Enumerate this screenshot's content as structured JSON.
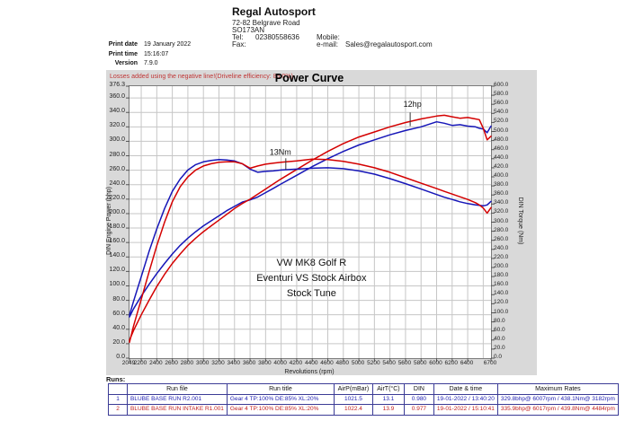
{
  "header": {
    "company": "Regal Autosport",
    "address_line1": "72-82 Belgrave Road",
    "address_line2": "SO173AN",
    "tel_label": "Tel:",
    "tel": "02380558636",
    "fax_label": "Fax:",
    "mobile_label": "Mobile:",
    "email_label": "e-mail:",
    "email": "Sales@regalautosport.com"
  },
  "print_info": {
    "print_date_label": "Print date",
    "print_date": "19 January 2022",
    "print_time_label": "Print time",
    "print_time": "15:16:07",
    "version_label": "Version",
    "version": "7.9.0"
  },
  "chart": {
    "title": "Power Curve",
    "losses_note": "Losses added using the negative line!(Driveline efficiency: 85.0%)"
  },
  "chart_data": {
    "type": "line",
    "title": "Power Curve",
    "xlabel": "Revolutions (rpm)",
    "ylabel_left": "DIN Engine Power (bhp)",
    "ylabel_right": "DIN Torque (Nm)",
    "x_range": [
      2049,
      6700
    ],
    "left_range": [
      0,
      376.3
    ],
    "right_range": [
      0,
      600
    ],
    "left_ticks": [
      376.3,
      360,
      340,
      320,
      300,
      280,
      260,
      240,
      220,
      200,
      180,
      160,
      140,
      120,
      100,
      80,
      60,
      40,
      20,
      0
    ],
    "right_tick_step": 20,
    "x_ticks": [
      2049,
      2200,
      2400,
      2600,
      2800,
      3000,
      3200,
      3400,
      3600,
      3800,
      4000,
      4200,
      4400,
      4600,
      4800,
      5000,
      5200,
      5400,
      5600,
      5800,
      6000,
      6200,
      6400,
      6700
    ],
    "grid": {
      "x_step": 200,
      "y_left_step": 20
    },
    "x": [
      2049,
      2100,
      2200,
      2300,
      2400,
      2500,
      2600,
      2700,
      2800,
      2900,
      3000,
      3100,
      3200,
      3300,
      3400,
      3500,
      3600,
      3700,
      3800,
      3900,
      4000,
      4200,
      4400,
      4600,
      4800,
      5000,
      5200,
      5400,
      5600,
      5800,
      6000,
      6100,
      6200,
      6300,
      6400,
      6500,
      6550,
      6600,
      6650,
      6700
    ],
    "series": [
      {
        "id": "power-stock",
        "name": "BLUBE BASE RUN R2.001 - Power (bhp)",
        "axis": "left",
        "color": "#1616b8",
        "values": [
          57,
          68,
          86,
          102,
          117,
          131,
          144,
          156,
          166,
          175,
          183,
          190,
          197,
          204,
          210,
          216,
          219,
          223,
          229,
          235,
          241,
          253,
          265,
          276,
          286,
          295,
          302,
          309,
          315,
          320,
          327,
          325,
          322,
          323,
          321,
          320,
          318,
          317,
          312,
          321
        ]
      },
      {
        "id": "power-intake",
        "name": "BLUBE BASE RUN INTAKE R1.001 - Power (bhp)",
        "axis": "left",
        "color": "#d40000",
        "values": [
          25,
          38,
          60,
          80,
          99,
          116,
          131,
          144,
          156,
          166,
          175,
          183,
          191,
          199,
          207,
          214,
          220,
          227,
          234,
          241,
          248,
          261,
          274,
          286,
          297,
          306,
          313,
          320,
          326,
          331,
          335,
          336,
          334,
          332,
          333,
          331,
          330,
          318,
          302,
          307
        ]
      },
      {
        "id": "torque-stock",
        "name": "BLUBE BASE RUN R2.001 - Torque (Nm)",
        "axis": "right",
        "color": "#1616b8",
        "values": [
          95,
          125,
          180,
          235,
          285,
          330,
          368,
          395,
          415,
          427,
          433,
          436,
          438,
          437,
          435,
          429,
          417,
          410,
          412,
          413,
          415,
          417,
          419,
          420,
          418,
          413,
          406,
          396,
          385,
          373,
          361,
          355,
          350,
          345,
          341,
          338,
          337,
          336,
          338,
          346
        ]
      },
      {
        "id": "torque-intake",
        "name": "BLUBE BASE RUN INTAKE R1.001 - Torque (Nm)",
        "axis": "right",
        "color": "#d40000",
        "values": [
          35,
          70,
          130,
          190,
          248,
          300,
          345,
          378,
          400,
          415,
          424,
          429,
          432,
          433,
          433,
          429,
          419,
          424,
          428,
          430,
          432,
          435,
          439,
          438,
          434,
          428,
          420,
          410,
          398,
          386,
          374,
          368,
          362,
          356,
          350,
          343,
          338,
          331,
          320,
          332
        ]
      }
    ],
    "annotations": [
      {
        "text": "12hp",
        "x": 5690,
        "y": 348,
        "axis": "left",
        "tick_x": 5660,
        "tick_y1": 340,
        "tick_y2": 321
      },
      {
        "text": "13Nm",
        "x": 3990,
        "y": 449,
        "axis": "right",
        "tick_x": 4060,
        "tick_y1": 441,
        "tick_y2": 416
      }
    ],
    "center_text": {
      "x": 4390,
      "lines": [
        "VW MK8 Golf R",
        "Eventuri VS Stock Airbox",
        "Stock Tune"
      ],
      "y_left_values": [
        128,
        107,
        86
      ]
    }
  },
  "runs_table": {
    "section_label": "Runs:",
    "columns": [
      "",
      "Run file",
      "Run title",
      "AirP(mBar)",
      "AirT(°C)",
      "DIN",
      "Date & time",
      "Maximum Rates"
    ],
    "rows": [
      {
        "color": "#2323b4",
        "cells": [
          "1",
          "BLUBE BASE RUN R2.001",
          "Gear 4 TP:100% DE:85% XL:20%",
          "1021.5",
          "13.1",
          "0.980",
          "19-01-2022 / 13:40:20",
          "329.8bhp@ 6007rpm / 438.1Nm@ 3182rpm"
        ]
      },
      {
        "color": "#c22222",
        "cells": [
          "2",
          "BLUBE BASE RUN INTAKE R1.001",
          "Gear 4 TP:100% DE:85% XL:20%",
          "1022.4",
          "13.9",
          "0.977",
          "19-01-2022 / 15:10:41",
          "335.9bhp@ 6017rpm / 439.8Nm@ 4484rpm"
        ]
      }
    ]
  }
}
